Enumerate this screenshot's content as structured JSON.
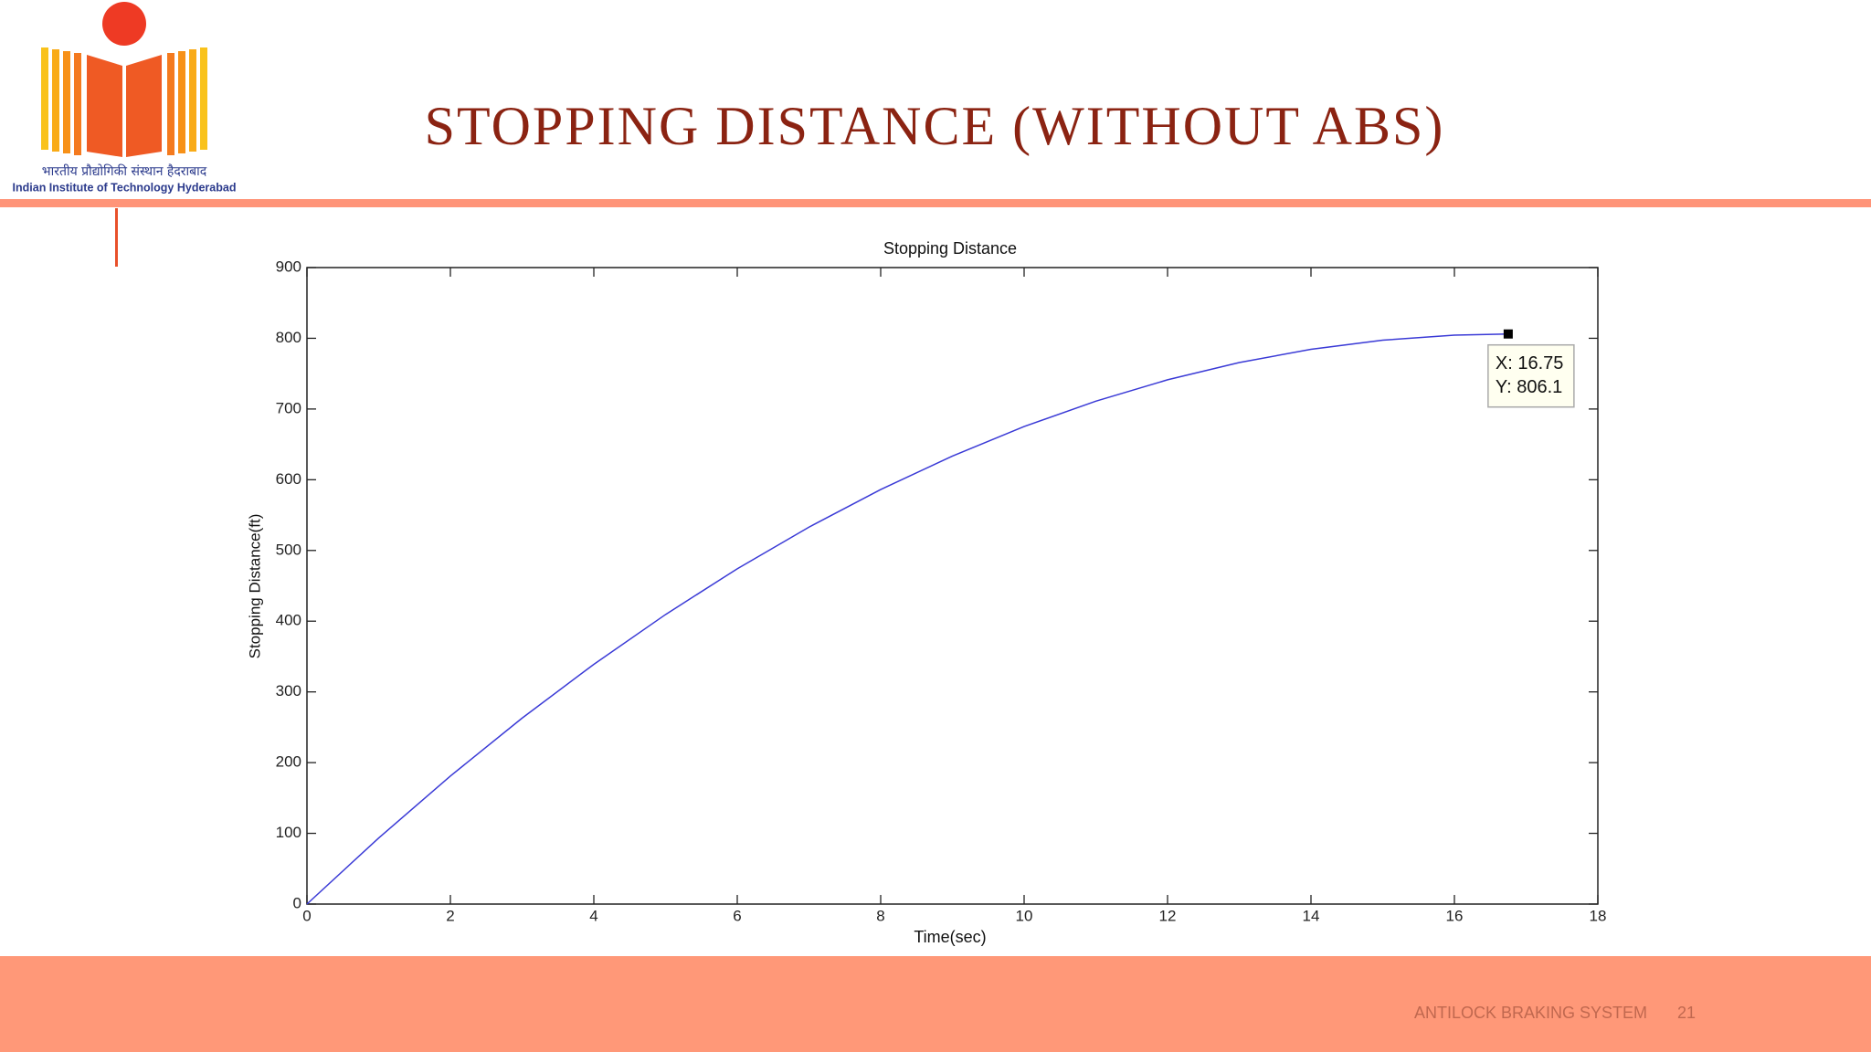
{
  "slide": {
    "title": "STOPPING DISTANCE (WITHOUT ABS)",
    "footer": "ANTILOCK BRAKING SYSTEM",
    "page_number": "21",
    "logo_hindi": "भारतीय प्रौद्योगिकी संस्थान हैदराबाद",
    "logo_english": "Indian Institute of Technology Hyderabad"
  },
  "chart_data": {
    "type": "line",
    "title": "Stopping Distance",
    "x_label": "Time(sec)",
    "y_label": "Stopping Distance(ft)",
    "x": [
      0,
      1,
      2,
      3,
      4,
      5,
      6,
      7,
      8,
      9,
      10,
      11,
      12,
      13,
      14,
      15,
      16,
      16.75
    ],
    "series": [
      {
        "color": "#3a3ad6",
        "values": [
          0,
          93.4,
          181.0,
          262.9,
          339.0,
          409.4,
          474.1,
          533.0,
          586.1,
          633.5,
          675.2,
          711.1,
          741.3,
          765.7,
          784.4,
          797.3,
          804.5,
          806.1
        ]
      }
    ],
    "xlim": [
      0,
      18
    ],
    "xticks": [
      0,
      2,
      4,
      6,
      8,
      10,
      12,
      14,
      16,
      18
    ],
    "ylim": [
      0,
      900
    ],
    "yticks": [
      0,
      100,
      200,
      300,
      400,
      500,
      600,
      700,
      800,
      900
    ],
    "grid": false,
    "datatip": {
      "x_text": "X: 16.75",
      "y_text": "Y: 806.1"
    }
  }
}
